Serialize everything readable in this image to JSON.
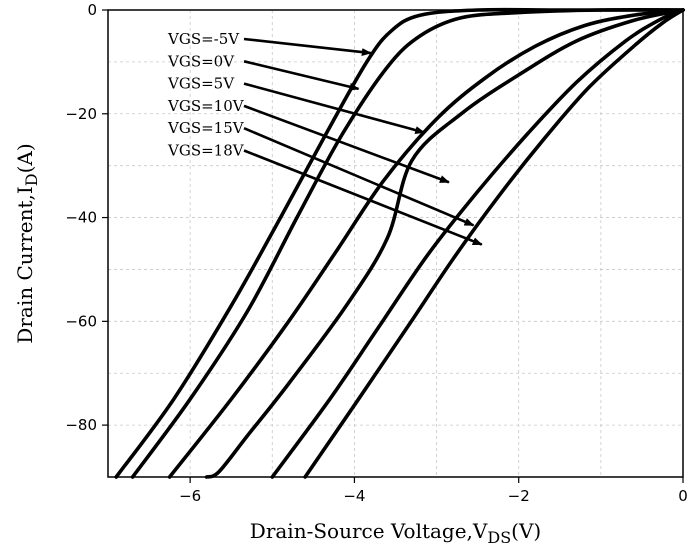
{
  "chart_data": {
    "type": "line",
    "title": "",
    "xlabel": {
      "main": "Drain-Source Voltage,V",
      "sub": "DS",
      "unit": "(V)"
    },
    "ylabel": {
      "main": "Drain Current,I",
      "sub": "D",
      "unit": "(A)"
    },
    "xlim": [
      -7,
      0
    ],
    "ylim": [
      -90,
      0
    ],
    "xticks": [
      -6,
      -4,
      -2,
      0
    ],
    "yticks": [
      0,
      -20,
      -40,
      -60,
      -80
    ],
    "grid": true,
    "series": [
      {
        "name": "VGS=-5V",
        "points": [
          [
            -6.9,
            -90
          ],
          [
            -6.2,
            -75
          ],
          [
            -5.5,
            -57
          ],
          [
            -4.9,
            -40
          ],
          [
            -4.35,
            -24
          ],
          [
            -3.85,
            -10
          ],
          [
            -3.55,
            -4
          ],
          [
            -3.2,
            -1
          ],
          [
            -2.5,
            0
          ],
          [
            -1.5,
            0
          ],
          [
            0,
            0
          ]
        ]
      },
      {
        "name": "VGS=0V",
        "points": [
          [
            -6.7,
            -90
          ],
          [
            -6.0,
            -75
          ],
          [
            -5.3,
            -58
          ],
          [
            -4.7,
            -40
          ],
          [
            -4.15,
            -24
          ],
          [
            -3.6,
            -11
          ],
          [
            -3.2,
            -5
          ],
          [
            -2.7,
            -1.5
          ],
          [
            -2.0,
            -0.5
          ],
          [
            -1.0,
            0
          ],
          [
            0,
            0
          ]
        ]
      },
      {
        "name": "VGS=5V",
        "points": [
          [
            -6.25,
            -90
          ],
          [
            -5.5,
            -75
          ],
          [
            -4.8,
            -60
          ],
          [
            -4.2,
            -46
          ],
          [
            -3.65,
            -33
          ],
          [
            -3.0,
            -21
          ],
          [
            -2.4,
            -13
          ],
          [
            -1.8,
            -7
          ],
          [
            -1.2,
            -3
          ],
          [
            -0.6,
            -1
          ],
          [
            0,
            0
          ]
        ]
      },
      {
        "name": "VGS=10V",
        "points": [
          [
            -5.8,
            -90
          ],
          [
            -5.65,
            -89
          ],
          [
            -5.3,
            -82
          ],
          [
            -4.8,
            -72
          ],
          [
            -4.1,
            -57
          ],
          [
            -3.6,
            -44
          ],
          [
            -3.3,
            -29
          ],
          [
            -2.7,
            -20
          ],
          [
            -2.0,
            -12.5
          ],
          [
            -1.3,
            -6
          ],
          [
            -0.6,
            -2
          ],
          [
            0,
            0
          ]
        ]
      },
      {
        "name": "VGS=15V",
        "points": [
          [
            -5.0,
            -90
          ],
          [
            -4.3,
            -75
          ],
          [
            -3.7,
            -61
          ],
          [
            -3.1,
            -47
          ],
          [
            -2.5,
            -35
          ],
          [
            -1.9,
            -24
          ],
          [
            -1.3,
            -14
          ],
          [
            -0.7,
            -6
          ],
          [
            -0.3,
            -2
          ],
          [
            0,
            0
          ]
        ]
      },
      {
        "name": "VGS=18V",
        "points": [
          [
            -4.6,
            -90
          ],
          [
            -3.95,
            -75
          ],
          [
            -3.35,
            -61
          ],
          [
            -2.8,
            -48
          ],
          [
            -2.25,
            -36
          ],
          [
            -1.7,
            -25
          ],
          [
            -1.15,
            -15
          ],
          [
            -0.6,
            -7
          ],
          [
            -0.25,
            -2.5
          ],
          [
            0,
            0
          ]
        ]
      }
    ],
    "annotations": [
      {
        "text": "VGS=-5V",
        "point": [
          -3.8,
          -8.3
        ]
      },
      {
        "text": "VGS=0V",
        "point": [
          -3.95,
          -15.2
        ]
      },
      {
        "text": "VGS=5V",
        "point": [
          -3.15,
          -23.6
        ]
      },
      {
        "text": "VGS=10V",
        "point": [
          -2.85,
          -33.2
        ]
      },
      {
        "text": "VGS=15V",
        "point": [
          -2.55,
          -41.5
        ]
      },
      {
        "text": "VGS=18V",
        "point": [
          -2.45,
          -45.2
        ]
      }
    ]
  }
}
